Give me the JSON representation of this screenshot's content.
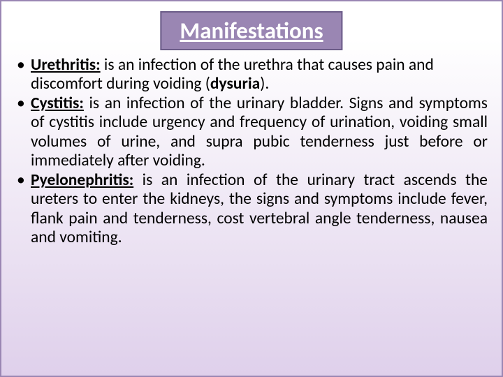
{
  "colors": {
    "title_bg": "#9a86b3",
    "title_border": "#6b5c88",
    "title_text": "#ffffff",
    "body_text": "#000000",
    "slide_border": "#9a86b3",
    "gradient_top": "#ffffff",
    "gradient_bottom": "#dfd0eb"
  },
  "typography": {
    "title_fontsize": 33,
    "body_fontsize": 23.5,
    "font_family": "Calibri"
  },
  "title": "Manifestations",
  "bullets": [
    {
      "term": "Urethritis:",
      "text": " is an infection of the urethra that causes pain and discomfort during voiding (",
      "term2": "dysuria",
      "tail": ").",
      "justify": false
    },
    {
      "term": "Cystitis:",
      "text": " is an infection of the urinary bladder. Signs and symptoms of cystitis include urgency and frequency of urination, voiding small volumes of urine, and supra pubic tenderness just before or immediately after voiding.",
      "justify": true
    },
    {
      "term": "Pyelonephritis:",
      "text": " is an infection of the urinary tract ascends the ureters to enter the kidneys, the signs and symptoms include fever, flank pain and tenderness, cost vertebral angle tenderness,  nausea and vomiting.",
      "justify": true
    }
  ]
}
